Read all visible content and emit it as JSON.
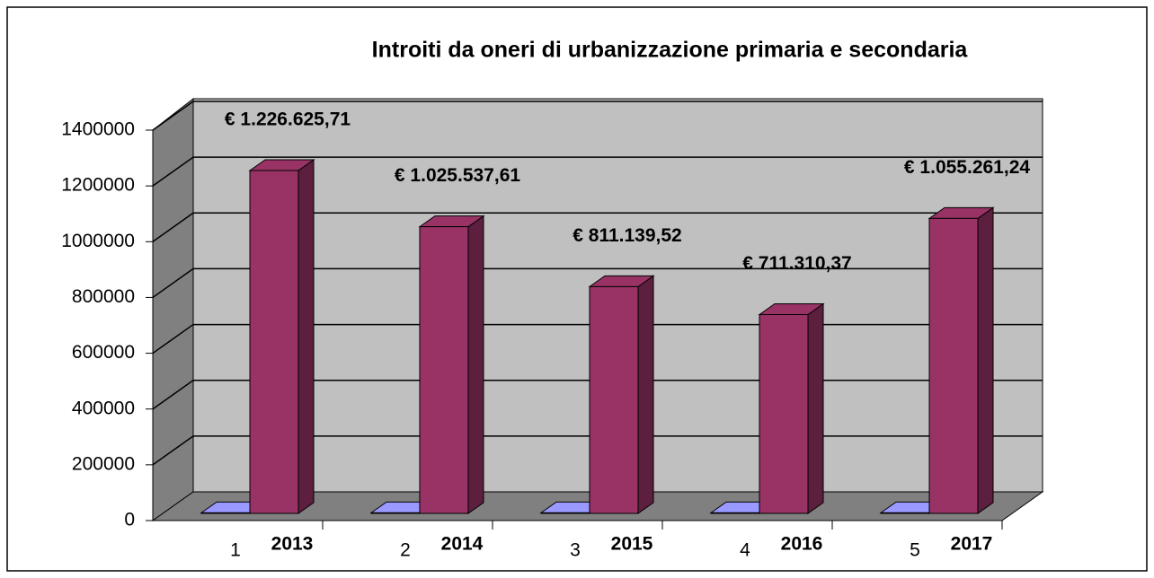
{
  "chart_data": {
    "type": "bar3d",
    "title": "Introiti da oneri di urbanizzazione primaria e secondaria",
    "categories": [
      "1",
      "2",
      "3",
      "4",
      "5"
    ],
    "series": [
      {
        "color": "#9999ff",
        "values": [
          2013,
          2014,
          2015,
          2016,
          2017
        ]
      },
      {
        "color": "#993366",
        "values": [
          1226625.71,
          1025537.61,
          811139.52,
          711310.37,
          1055261.24
        ],
        "value_labels": [
          "€ 1.226.625,71",
          "€ 1.025.537,61",
          "€ 811.139,52",
          "€ 711.310,37",
          "€ 1.055.261,24"
        ]
      }
    ],
    "ylim": [
      0,
      1400000
    ],
    "yticks": [
      0,
      200000,
      400000,
      600000,
      800000,
      1000000,
      1200000,
      1400000
    ],
    "grid": true
  }
}
